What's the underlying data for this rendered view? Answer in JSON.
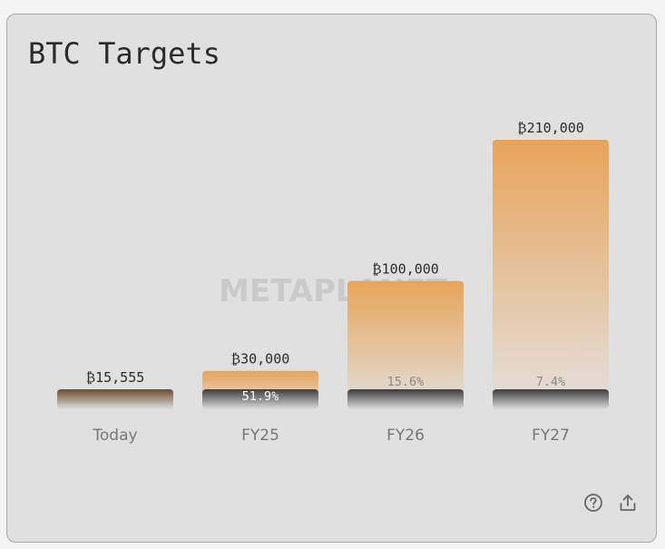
{
  "card": {
    "title": "BTC Targets",
    "watermark": "METAPLANET"
  },
  "icons": {
    "help": "question-circle-icon",
    "share": "upload-share-icon"
  },
  "colors": {
    "target_top": "#e8a45a",
    "target_bottom": "#e2e0de",
    "holdings_dark": "#3c3c3c",
    "holdings_today": "#6a4c2e"
  },
  "chart_data": {
    "type": "bar",
    "categories": [
      "Today",
      "FY25",
      "FY26",
      "FY27"
    ],
    "values": [
      15555,
      30000,
      100000,
      210000
    ],
    "value_labels": [
      "₿15,555",
      "₿30,000",
      "₿100,000",
      "₿210,000"
    ],
    "current_holdings": 15555,
    "percent_of_target": [
      "",
      "51.9%",
      "15.6%",
      "7.4%"
    ],
    "title": "BTC Targets",
    "xlabel": "",
    "ylabel": "",
    "ylim": [
      0,
      210000
    ],
    "grid": false,
    "legend": "none"
  }
}
